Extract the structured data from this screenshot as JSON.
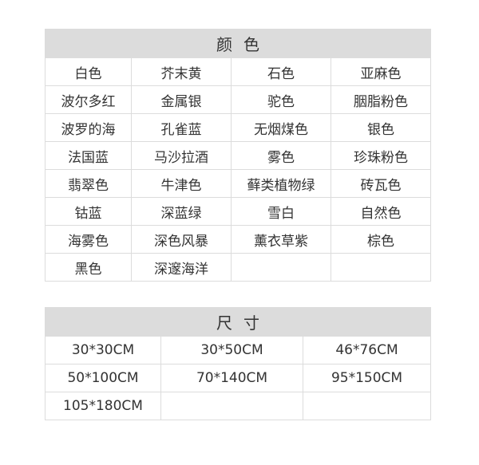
{
  "colors": {
    "title": "颜色",
    "rows": [
      [
        "白色",
        "芥末黄",
        "石色",
        "亚麻色"
      ],
      [
        "波尔多红",
        "金属银",
        "驼色",
        "胭脂粉色"
      ],
      [
        "波罗的海",
        "孔雀蓝",
        "无烟煤色",
        "银色"
      ],
      [
        "法国蓝",
        "马沙拉酒",
        "雾色",
        "珍珠粉色"
      ],
      [
        "翡翠色",
        "牛津色",
        "藓类植物绿",
        "砖瓦色"
      ],
      [
        "钴蓝",
        "深蓝绿",
        "雪白",
        "自然色"
      ],
      [
        "海雾色",
        "深色风暴",
        "薰衣草紫",
        "棕色"
      ],
      [
        "黑色",
        "深邃海洋",
        "",
        ""
      ]
    ]
  },
  "sizes": {
    "title": "尺寸",
    "rows": [
      [
        "30*30CM",
        "30*50CM",
        "46*76CM"
      ],
      [
        "50*100CM",
        "70*140CM",
        "95*150CM"
      ],
      [
        "105*180CM",
        "",
        ""
      ]
    ]
  }
}
